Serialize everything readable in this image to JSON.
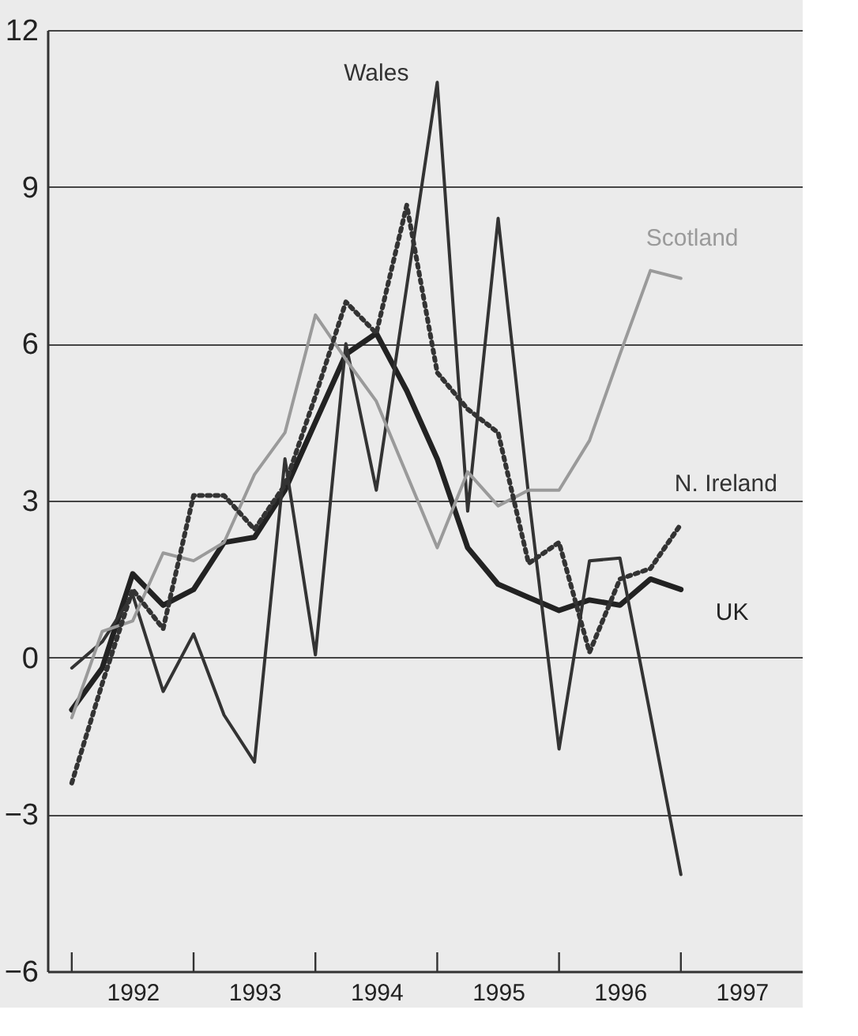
{
  "chart_data": {
    "type": "line",
    "x": [
      1992,
      1992.25,
      1992.5,
      1992.75,
      1993,
      1993.25,
      1993.5,
      1993.75,
      1994,
      1994.25,
      1994.5,
      1994.75,
      1995,
      1995.25,
      1995.5,
      1995.75,
      1996,
      1996.25,
      1996.5,
      1996.75,
      1997
    ],
    "series": [
      {
        "name": "UK",
        "color": "#222222",
        "line_style": "solid",
        "values": [
          -1.0,
          -0.2,
          1.6,
          1.0,
          1.3,
          2.2,
          2.3,
          3.2,
          4.5,
          5.8,
          6.2,
          5.1,
          3.8,
          2.1,
          1.4,
          1.15,
          0.9,
          1.1,
          1.0,
          1.5,
          1.3
        ]
      },
      {
        "name": "Wales",
        "color": "#333333",
        "line_style": "solid",
        "values": [
          -0.2,
          0.3,
          1.2,
          -0.65,
          0.45,
          -1.1,
          -2.0,
          3.8,
          0.05,
          6.0,
          3.2,
          7.1,
          11.0,
          2.8,
          8.4,
          3.1,
          -1.75,
          1.85,
          1.9,
          -1.1,
          -4.15
        ]
      },
      {
        "name": "Scotland",
        "color": "#9a9a9a",
        "line_style": "solid",
        "values": [
          -1.15,
          0.5,
          0.7,
          2.0,
          1.85,
          2.2,
          3.5,
          4.3,
          6.55,
          5.7,
          4.9,
          3.5,
          2.1,
          3.55,
          2.9,
          3.2,
          3.2,
          4.15,
          5.8,
          7.4,
          7.25
        ]
      },
      {
        "name": "N. Ireland",
        "color": "#333333",
        "line_style": "dotted",
        "values": [
          -2.4,
          -0.5,
          1.3,
          0.55,
          3.1,
          3.1,
          2.45,
          3.3,
          5.0,
          6.8,
          6.2,
          8.65,
          5.45,
          4.75,
          4.3,
          1.8,
          2.2,
          0.1,
          1.5,
          1.7,
          2.55
        ]
      }
    ],
    "xlim": [
      1991.8,
      1998
    ],
    "xticks": [
      {
        "value": 1992,
        "label": null
      },
      {
        "value": 1993,
        "label": null
      },
      {
        "value": 1994,
        "label": null
      },
      {
        "value": 1995,
        "label": null
      },
      {
        "value": 1996,
        "label": null
      },
      {
        "value": 1997,
        "label": null
      },
      {
        "value": 1992.5,
        "label": "1992"
      },
      {
        "value": 1993.5,
        "label": "1993"
      },
      {
        "value": 1994.5,
        "label": "1994"
      },
      {
        "value": 1995.5,
        "label": "1995"
      },
      {
        "value": 1996.5,
        "label": "1996"
      },
      {
        "value": 1997.5,
        "label": "1997"
      }
    ],
    "ylim": [
      -6,
      12
    ],
    "yticks": [
      -6,
      -3,
      0,
      3,
      6,
      9,
      12
    ],
    "grid": "y",
    "legend": false,
    "marker": "none"
  }
}
